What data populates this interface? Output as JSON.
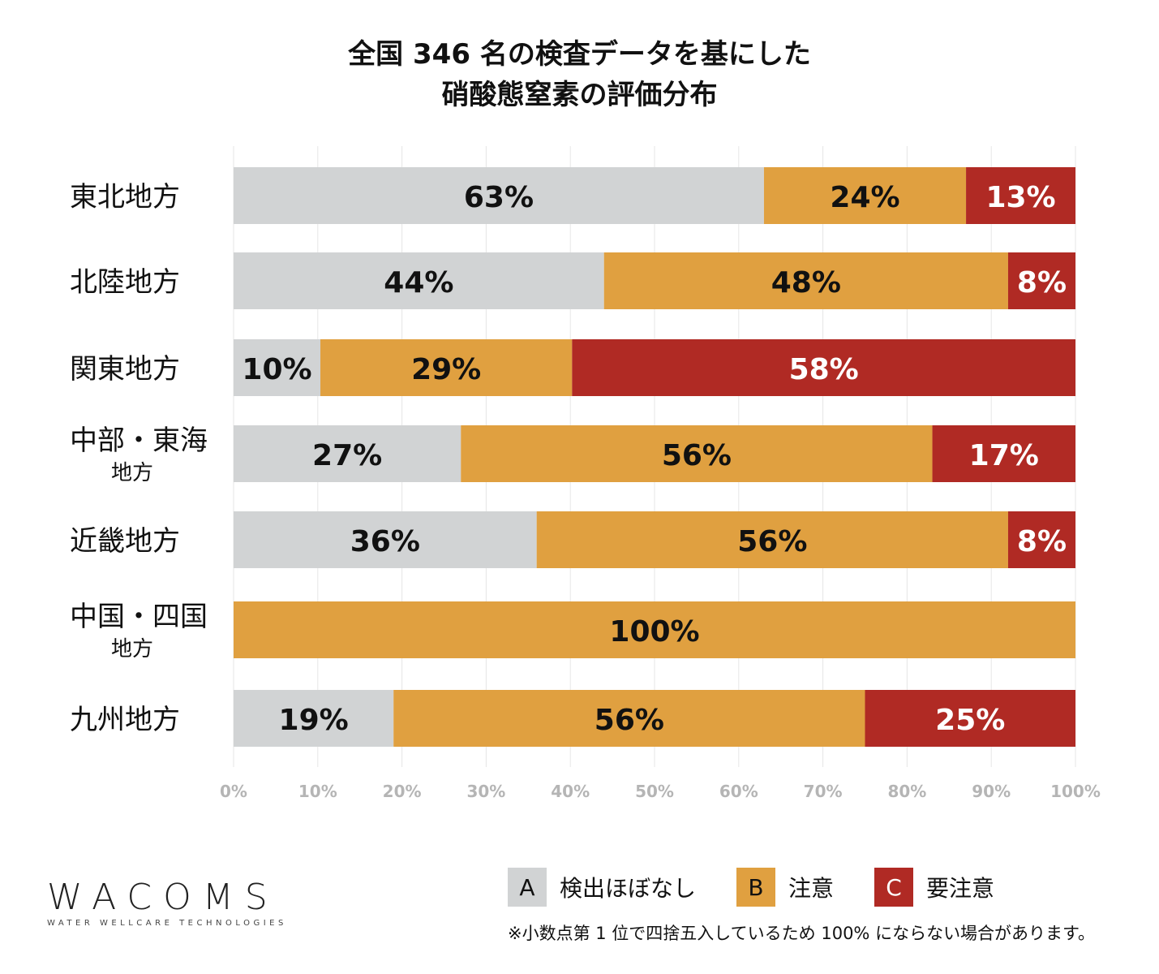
{
  "chart_data": {
    "type": "bar",
    "orientation": "horizontal",
    "stacked": true,
    "title_lines": [
      "全国 346 名の検査データを基にした",
      "硝酸態窒素の評価分布"
    ],
    "categories": [
      {
        "main": "東北地方",
        "sub": ""
      },
      {
        "main": "北陸地方",
        "sub": ""
      },
      {
        "main": "関東地方",
        "sub": ""
      },
      {
        "main": "中部・東海",
        "sub": "地方"
      },
      {
        "main": "近畿地方",
        "sub": ""
      },
      {
        "main": "中国・四国",
        "sub": "地方"
      },
      {
        "main": "九州地方",
        "sub": ""
      }
    ],
    "series": [
      {
        "name": "検出ほぼなし",
        "key": "A",
        "color": "#d1d3d4",
        "text_color": "#111111",
        "values": [
          63,
          44,
          10,
          27,
          36,
          0,
          19
        ]
      },
      {
        "name": "注意",
        "key": "B",
        "color": "#e0a040",
        "text_color": "#111111",
        "values": [
          24,
          48,
          29,
          56,
          56,
          100,
          56
        ]
      },
      {
        "name": "要注意",
        "key": "C",
        "color": "#b02a24",
        "text_color": "#ffffff",
        "values": [
          13,
          8,
          58,
          17,
          8,
          0,
          25
        ]
      }
    ],
    "xlim": [
      0,
      100
    ],
    "xticks": [
      "0%",
      "10%",
      "20%",
      "30%",
      "40%",
      "50%",
      "60%",
      "70%",
      "80%",
      "90%",
      "100%"
    ],
    "grid": true,
    "legend_position": "bottom-right",
    "note": "※小数点第 1 位で四捨五入しているため 100% にならない場合があります。"
  },
  "logo": {
    "main": "WACOMS",
    "sub": "WATER WELLCARE TECHNOLOGIES"
  }
}
